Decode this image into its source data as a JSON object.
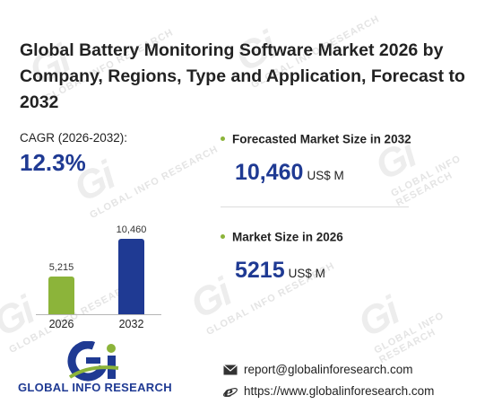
{
  "title": "Global Battery Monitoring Software Market 2026 by Company, Regions, Type and Application, Forecast to 2032",
  "cagr": {
    "label": "CAGR (2026-2032):",
    "value": "12.3%"
  },
  "forecast": {
    "label": "Forecasted Market Size in 2032",
    "value": "10,460",
    "unit": "US$ M"
  },
  "current": {
    "label": "Market Size in 2026",
    "value": "5215",
    "unit": "US$ M"
  },
  "chart_data": {
    "type": "bar",
    "categories": [
      "2026",
      "2032"
    ],
    "values": [
      5215,
      10460
    ],
    "value_labels": [
      "5,215",
      "10,460"
    ],
    "colors": [
      "#8cb43a",
      "#1f3a93"
    ],
    "title": "",
    "xlabel": "",
    "ylabel": ""
  },
  "brand": {
    "name": "GLOBAL INFO RESEARCH",
    "watermark": "GLOBAL INFO RESEARCH",
    "accent": "#1f3a93",
    "green": "#8cb43a"
  },
  "contact": {
    "email": "report@globalinforesearch.com",
    "website": "https://www.globalinforesearch.com"
  },
  "icons": {
    "email": "envelope-icon",
    "website": "ie-browser-icon",
    "bullet": "bullet-dot-icon"
  }
}
